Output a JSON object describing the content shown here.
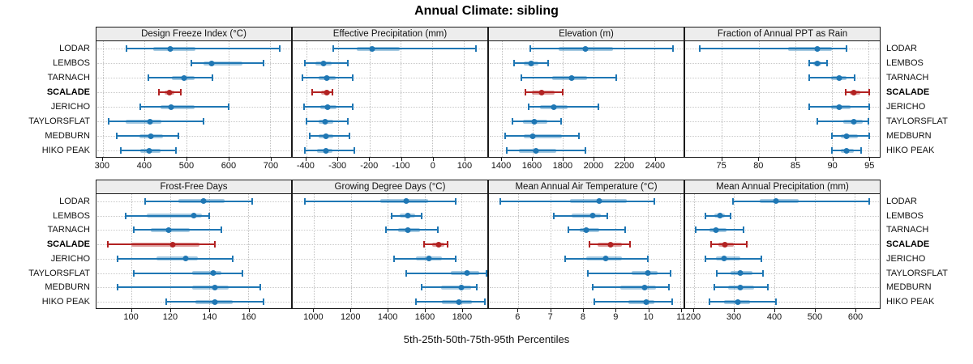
{
  "title": "Annual Climate: sibling",
  "footer": "5th-25th-50th-75th-95th Percentiles",
  "colors": {
    "series": "#1F77B4",
    "series_band": "#1F77B466",
    "highlight": "#B22222",
    "highlight_band": "#B2222273",
    "header_bg": "#EDEDED",
    "grid": "#BFBFBF",
    "border": "#1A1A1A"
  },
  "chart_data": {
    "type": "dot-interval",
    "orientation": "horizontal",
    "percentiles": [
      "5th",
      "25th",
      "50th",
      "75th",
      "95th"
    ],
    "locations": [
      "LODAR",
      "LEMBOS",
      "TARNACH",
      "SCALADE",
      "JERICHO",
      "TAYLORSFLAT",
      "MEDBURN",
      "HIKO PEAK"
    ],
    "highlight": "SCALADE",
    "panels": [
      {
        "title": "Design Freeze Index (°C)",
        "row": 0,
        "xlim": [
          285,
          750
        ],
        "ticks": [
          300,
          400,
          500,
          600,
          700
        ],
        "values": {
          "LODAR": [
            356,
            420,
            462,
            522,
            722
          ],
          "LEMBOS": [
            512,
            540,
            561,
            634,
            684
          ],
          "TARNACH": [
            409,
            466,
            494,
            520,
            563
          ],
          "SCALADE": [
            434,
            448,
            459,
            471,
            486
          ],
          "JERICHO": [
            389,
            438,
            464,
            520,
            600
          ],
          "TAYLORSFLAT": [
            314,
            355,
            413,
            440,
            540
          ],
          "MEDBURN": [
            334,
            388,
            414,
            444,
            480
          ],
          "HIKO PEAK": [
            344,
            389,
            410,
            438,
            474
          ]
        }
      },
      {
        "title": "Effective Precipitation (mm)",
        "row": 0,
        "xlim": [
          -443,
          174
        ],
        "ticks": [
          -400,
          -300,
          -200,
          -100,
          0,
          100
        ],
        "values": {
          "LODAR": [
            -314,
            -239,
            -192,
            -104,
            138
          ],
          "LEMBOS": [
            -405,
            -372,
            -345,
            -320,
            -268
          ],
          "TARNACH": [
            -412,
            -360,
            -335,
            -308,
            -252
          ],
          "SCALADE": [
            -382,
            -352,
            -336,
            -325,
            -318
          ],
          "JERICHO": [
            -408,
            -356,
            -333,
            -305,
            -252
          ],
          "TAYLORSFLAT": [
            -400,
            -362,
            -340,
            -315,
            -268
          ],
          "MEDBURN": [
            -390,
            -360,
            -338,
            -315,
            -262
          ],
          "HIKO PEAK": [
            -405,
            -365,
            -338,
            -318,
            -248
          ]
        }
      },
      {
        "title": "Elevation (m)",
        "row": 0,
        "xlim": [
          1316,
          2590
        ],
        "ticks": [
          1400,
          1600,
          1800,
          2000,
          2200,
          2400
        ],
        "values": {
          "LODAR": [
            1585,
            1775,
            1950,
            2130,
            2520
          ],
          "LEMBOS": [
            1480,
            1545,
            1590,
            1640,
            1705
          ],
          "TARNACH": [
            1530,
            1730,
            1855,
            1960,
            2150
          ],
          "SCALADE": [
            1555,
            1595,
            1660,
            1745,
            1800
          ],
          "JERICHO": [
            1575,
            1650,
            1740,
            1830,
            2030
          ],
          "TAYLORSFLAT": [
            1470,
            1540,
            1615,
            1700,
            1790
          ],
          "MEDBURN": [
            1420,
            1545,
            1600,
            1795,
            1905
          ],
          "HIKO PEAK": [
            1435,
            1510,
            1625,
            1755,
            1950
          ]
        }
      },
      {
        "title": "Fraction of Annual PPT as Rain",
        "row": 0,
        "xlim": [
          70,
          96.5
        ],
        "ticks": [
          75,
          80,
          85,
          90,
          95
        ],
        "values": {
          "LODAR": [
            72,
            84,
            88,
            90,
            92
          ],
          "LEMBOS": [
            86.9,
            87.5,
            88,
            88.6,
            89.3
          ],
          "TARNACH": [
            86.9,
            89.9,
            91,
            92,
            93.1
          ],
          "SCALADE": [
            91.9,
            92.4,
            93,
            93.9,
            95.1
          ],
          "JERICHO": [
            86.9,
            89.9,
            91,
            92.5,
            95.1
          ],
          "TAYLORSFLAT": [
            88,
            91.5,
            93,
            94.2,
            94.9
          ],
          "MEDBURN": [
            90,
            91.2,
            92,
            93.5,
            95.1
          ],
          "HIKO PEAK": [
            90,
            91.2,
            92,
            93,
            94
          ]
        }
      },
      {
        "title": "Frost-Free Days",
        "row": 1,
        "xlim": [
          82,
          182
        ],
        "ticks": [
          100,
          120,
          140,
          160
        ],
        "values": {
          "LODAR": [
            107,
            124,
            137,
            148,
            162
          ],
          "LEMBOS": [
            97,
            108,
            132,
            136,
            140
          ],
          "TARNACH": [
            101,
            110,
            119,
            130,
            146
          ],
          "SCALADE": [
            88,
            100,
            121,
            135,
            143
          ],
          "JERICHO": [
            93,
            113,
            128,
            134,
            152
          ],
          "TAYLORSFLAT": [
            101,
            131,
            142,
            146,
            157
          ],
          "MEDBURN": [
            93,
            131,
            143,
            150,
            166
          ],
          "HIKO PEAK": [
            118,
            133,
            143,
            152,
            168
          ]
        }
      },
      {
        "title": "Growing Degree Days (°C)",
        "row": 1,
        "xlim": [
          885,
          1940
        ],
        "ticks": [
          1000,
          1200,
          1400,
          1600,
          1800
        ],
        "values": {
          "LODAR": [
            950,
            1360,
            1500,
            1620,
            1770
          ],
          "LEMBOS": [
            1420,
            1465,
            1510,
            1550,
            1585
          ],
          "TARNACH": [
            1390,
            1455,
            1510,
            1575,
            1670
          ],
          "SCALADE": [
            1595,
            1640,
            1675,
            1705,
            1725
          ],
          "JERICHO": [
            1435,
            1555,
            1625,
            1695,
            1770
          ],
          "TAYLORSFLAT": [
            1500,
            1740,
            1830,
            1895,
            1935
          ],
          "MEDBURN": [
            1585,
            1690,
            1800,
            1850,
            1885
          ],
          "HIKO PEAK": [
            1555,
            1695,
            1785,
            1855,
            1925
          ]
        }
      },
      {
        "title": "Mean Annual Air Temperature (°C)",
        "row": 1,
        "xlim": [
          5.1,
          11.1
        ],
        "ticks": [
          6,
          7,
          8,
          9,
          10,
          11
        ],
        "values": {
          "LODAR": [
            5.45,
            7.6,
            8.5,
            9.35,
            10.2
          ],
          "LEMBOS": [
            7.1,
            7.65,
            8.3,
            8.55,
            8.75
          ],
          "TARNACH": [
            7.55,
            7.9,
            8.1,
            8.5,
            9.3
          ],
          "SCALADE": [
            8.2,
            8.45,
            8.85,
            9.2,
            9.45
          ],
          "JERICHO": [
            7.45,
            8.1,
            8.7,
            9.2,
            10.0
          ],
          "TAYLORSFLAT": [
            8.15,
            9.5,
            10.0,
            10.3,
            10.7
          ],
          "MEDBURN": [
            8.3,
            9.15,
            9.9,
            10.25,
            10.65
          ],
          "HIKO PEAK": [
            8.35,
            9.4,
            9.95,
            10.2,
            10.75
          ]
        }
      },
      {
        "title": "Mean Annual Precipitation (mm)",
        "row": 1,
        "xlim": [
          178,
          662
        ],
        "ticks": [
          200,
          300,
          400,
          500,
          600
        ],
        "values": {
          "LODAR": [
            297,
            363,
            403,
            460,
            635
          ],
          "LEMBOS": [
            228,
            250,
            264,
            277,
            290
          ],
          "TARNACH": [
            205,
            238,
            254,
            280,
            323
          ],
          "SCALADE": [
            243,
            260,
            276,
            300,
            331
          ],
          "JERICHO": [
            228,
            255,
            274,
            315,
            368
          ],
          "TAYLORSFLAT": [
            256,
            290,
            315,
            345,
            372
          ],
          "MEDBURN": [
            250,
            285,
            315,
            350,
            383
          ],
          "HIKO PEAK": [
            238,
            275,
            310,
            340,
            403
          ]
        }
      }
    ]
  }
}
